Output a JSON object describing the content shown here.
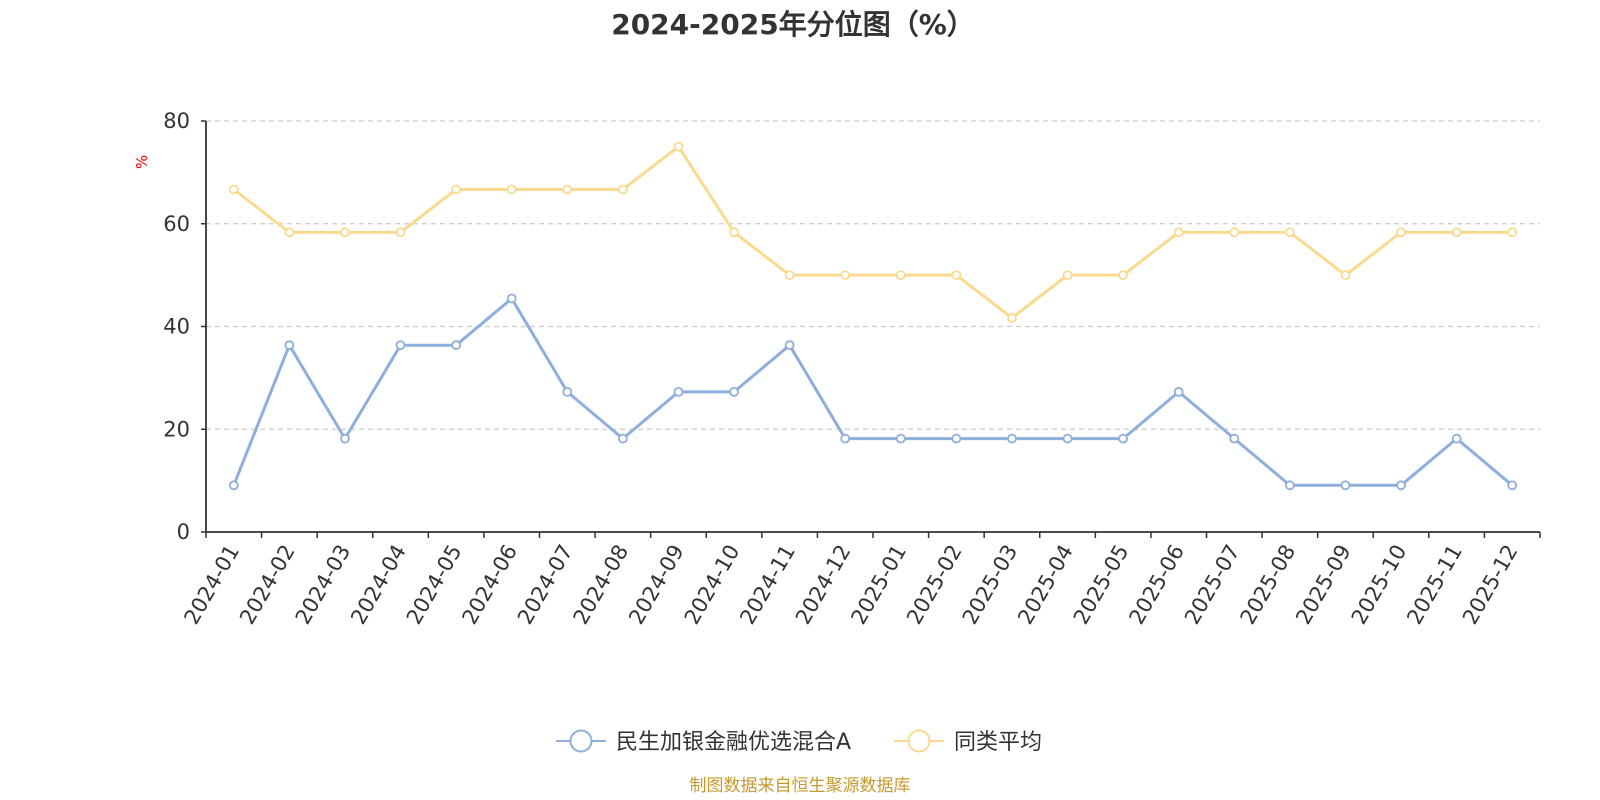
{
  "chart_data": {
    "type": "line",
    "title": "2024-2025年分位图（%）",
    "ylabel": "%",
    "xlabel": "",
    "ylim": [
      0,
      80
    ],
    "yticks": [
      0,
      20,
      40,
      60,
      80
    ],
    "grid": true,
    "legend_position": "bottom",
    "categories": [
      "2024-01",
      "2024-02",
      "2024-03",
      "2024-04",
      "2024-05",
      "2024-06",
      "2024-07",
      "2024-08",
      "2024-09",
      "2024-10",
      "2024-11",
      "2024-12",
      "2025-01",
      "2025-02",
      "2025-03",
      "2025-04",
      "2025-05",
      "2025-06",
      "2025-07",
      "2025-08",
      "2025-09",
      "2025-10",
      "2025-11",
      "2025-12"
    ],
    "series": [
      {
        "name": "民生加银金融优选混合A",
        "color": "#8eaedc",
        "values": [
          9.09,
          36.36,
          18.18,
          36.36,
          36.36,
          45.45,
          27.27,
          18.18,
          27.27,
          27.27,
          36.36,
          18.18,
          18.18,
          18.18,
          18.18,
          18.18,
          18.18,
          27.27,
          18.18,
          9.09,
          9.09,
          9.09,
          18.18,
          9.09
        ]
      },
      {
        "name": "同类平均",
        "color": "#fbd98f",
        "values": [
          66.67,
          58.33,
          58.33,
          58.33,
          66.67,
          66.67,
          66.67,
          66.67,
          75.0,
          58.33,
          50.0,
          50.0,
          50.0,
          50.0,
          41.67,
          50.0,
          50.0,
          58.33,
          58.33,
          58.33,
          50.0,
          58.33,
          58.33,
          58.33
        ]
      }
    ],
    "source": "制图数据来自恒生聚源数据库",
    "colors": {
      "unit_label": "#ff0000",
      "source_text": "#c79a2e",
      "axis": "#333333",
      "grid": "#cccccc",
      "text": "#333333"
    }
  }
}
